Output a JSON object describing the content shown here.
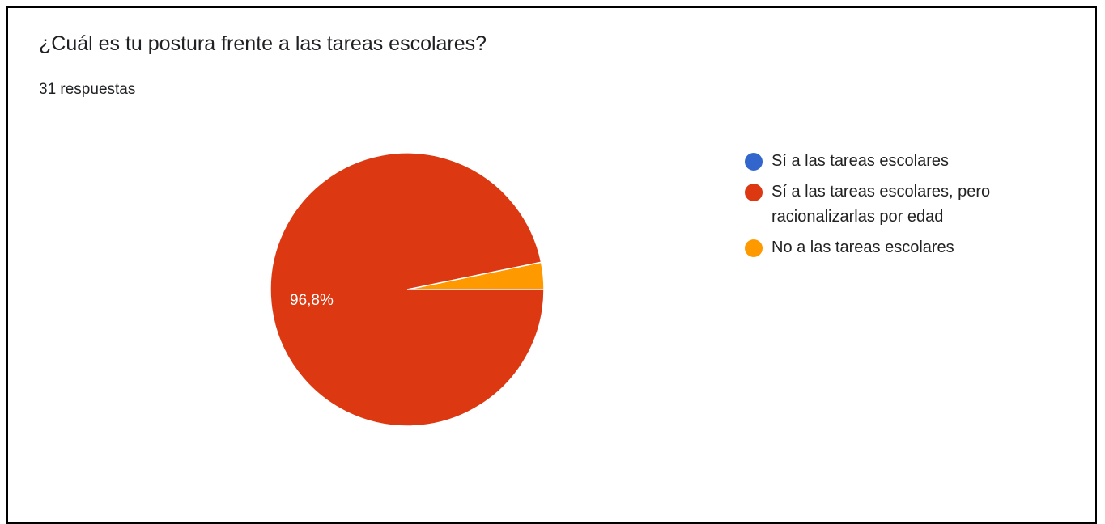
{
  "chart_data": {
    "type": "pie",
    "title": "¿Cuál es tu postura frente a las tareas escolares?",
    "subtitle": "31 respuestas",
    "legend_position": "right",
    "series": [
      {
        "name": "Sí a las tareas escolares",
        "value": 0,
        "color": "#3366cc"
      },
      {
        "name": "Sí a las tareas escolares, pero racionalizarlas por edad",
        "value": 96.8,
        "color": "#dc3912"
      },
      {
        "name": "No a las tareas escolares",
        "value": 3.2,
        "color": "#ff9900"
      }
    ],
    "data_labels": [
      {
        "series_index": 1,
        "text": "96,8%"
      }
    ]
  }
}
